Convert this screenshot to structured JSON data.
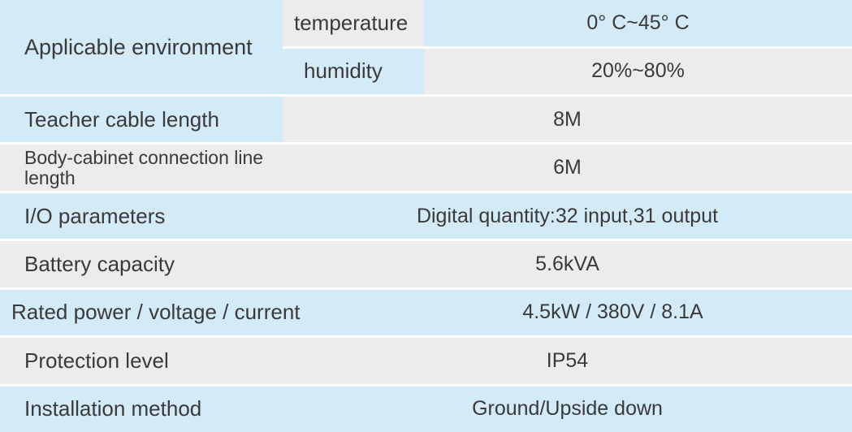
{
  "colors": {
    "light_blue": "#d3eaf7",
    "light_gray": "#ececec",
    "text_dark": "#3a3a3a",
    "text_blue_gray": "#4a5560"
  },
  "fonts": {
    "label_size": "26px",
    "value_size": "25px",
    "letter_spacing": "0px",
    "weight": "300"
  },
  "spec": {
    "env": {
      "label": "Applicable environment",
      "temperature": {
        "label": "temperature",
        "value": "0°  C~45°  C"
      },
      "humidity": {
        "label": "humidity",
        "value": "20%~80%"
      }
    },
    "rows": [
      {
        "label": "Teacher cable length",
        "value": "8M"
      },
      {
        "label": "Body-cabinet connection line length",
        "value": "6M",
        "small_label": true
      },
      {
        "label": "I/O parameters",
        "value": "Digital quantity:32 input,31 output"
      },
      {
        "label": "Battery capacity",
        "value": "5.6kVA"
      },
      {
        "label": "Rated power / voltage / current",
        "value": "4.5kW / 380V / 8.1A",
        "wide_label": true
      },
      {
        "label": "Protection level",
        "value": "IP54"
      },
      {
        "label": "Installation method",
        "value": "Ground/Upside down"
      }
    ]
  }
}
